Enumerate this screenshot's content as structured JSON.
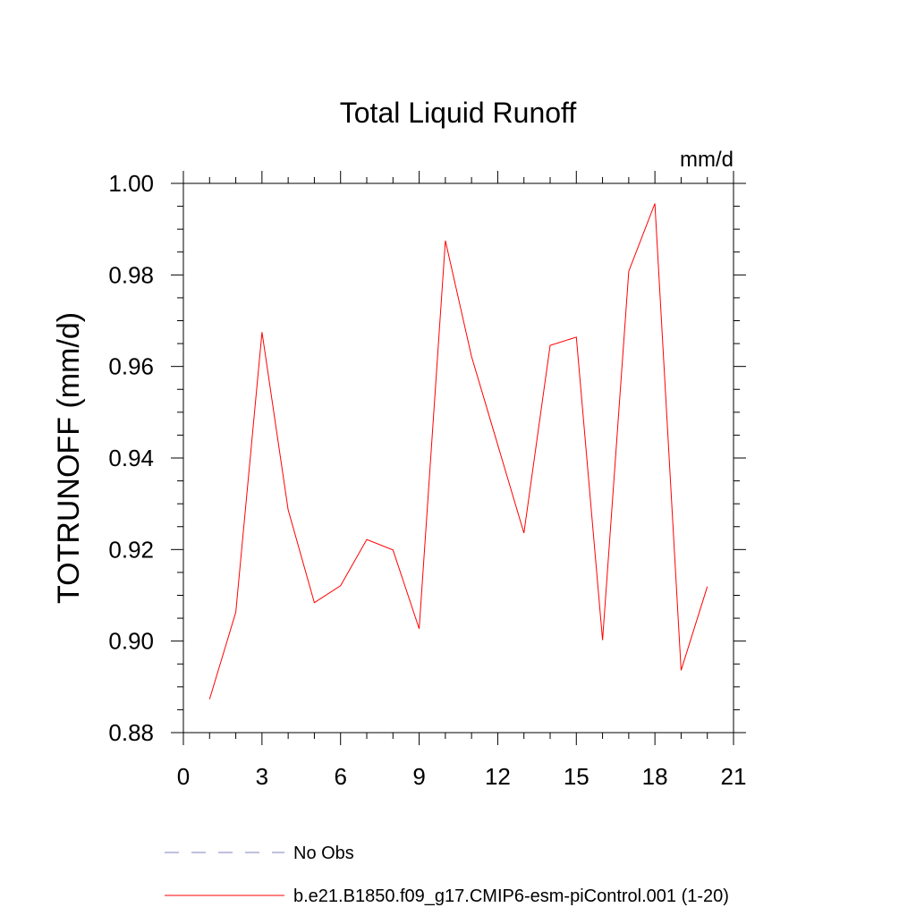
{
  "chart_data": {
    "type": "line",
    "title": "Total Liquid Runoff",
    "units_label": "mm/d",
    "xlabel": "",
    "ylabel": "TOTRUNOFF  (mm/d)",
    "xlim": [
      0,
      21
    ],
    "ylim": [
      0.88,
      1.0
    ],
    "x_ticks": [
      0,
      3,
      6,
      9,
      12,
      15,
      18,
      21
    ],
    "x_tick_labels": [
      "0",
      "3",
      "6",
      "9",
      "12",
      "15",
      "18",
      "21"
    ],
    "y_ticks": [
      0.88,
      0.9,
      0.92,
      0.94,
      0.96,
      0.98,
      1.0
    ],
    "y_tick_labels": [
      "0.88",
      "0.90",
      "0.92",
      "0.94",
      "0.96",
      "0.98",
      "1.00"
    ],
    "grid": false,
    "legend_position": "bottom",
    "series": [
      {
        "name": "b.e21.B1850.f09_g17.CMIP6-esm-piControl.001 (1-20)",
        "color": "#ff0000",
        "style": "solid",
        "x": [
          1,
          2,
          3,
          4,
          5,
          6,
          7,
          8,
          9,
          10,
          11,
          12,
          13,
          14,
          15,
          16,
          17,
          18,
          19,
          20
        ],
        "y": [
          0.8873,
          0.9063,
          0.9675,
          0.9287,
          0.9084,
          0.9121,
          0.9222,
          0.9199,
          0.9027,
          0.9875,
          0.9622,
          0.9429,
          0.9236,
          0.9646,
          0.9664,
          0.9002,
          0.9808,
          0.9956,
          0.8936,
          0.9119
        ]
      }
    ],
    "legend_entries": [
      {
        "label": "No Obs",
        "color": "#8080c0",
        "style": "dashed"
      },
      {
        "label": "b.e21.B1850.f09_g17.CMIP6-esm-piControl.001 (1-20)",
        "color": "#ff0000",
        "style": "solid"
      }
    ]
  }
}
